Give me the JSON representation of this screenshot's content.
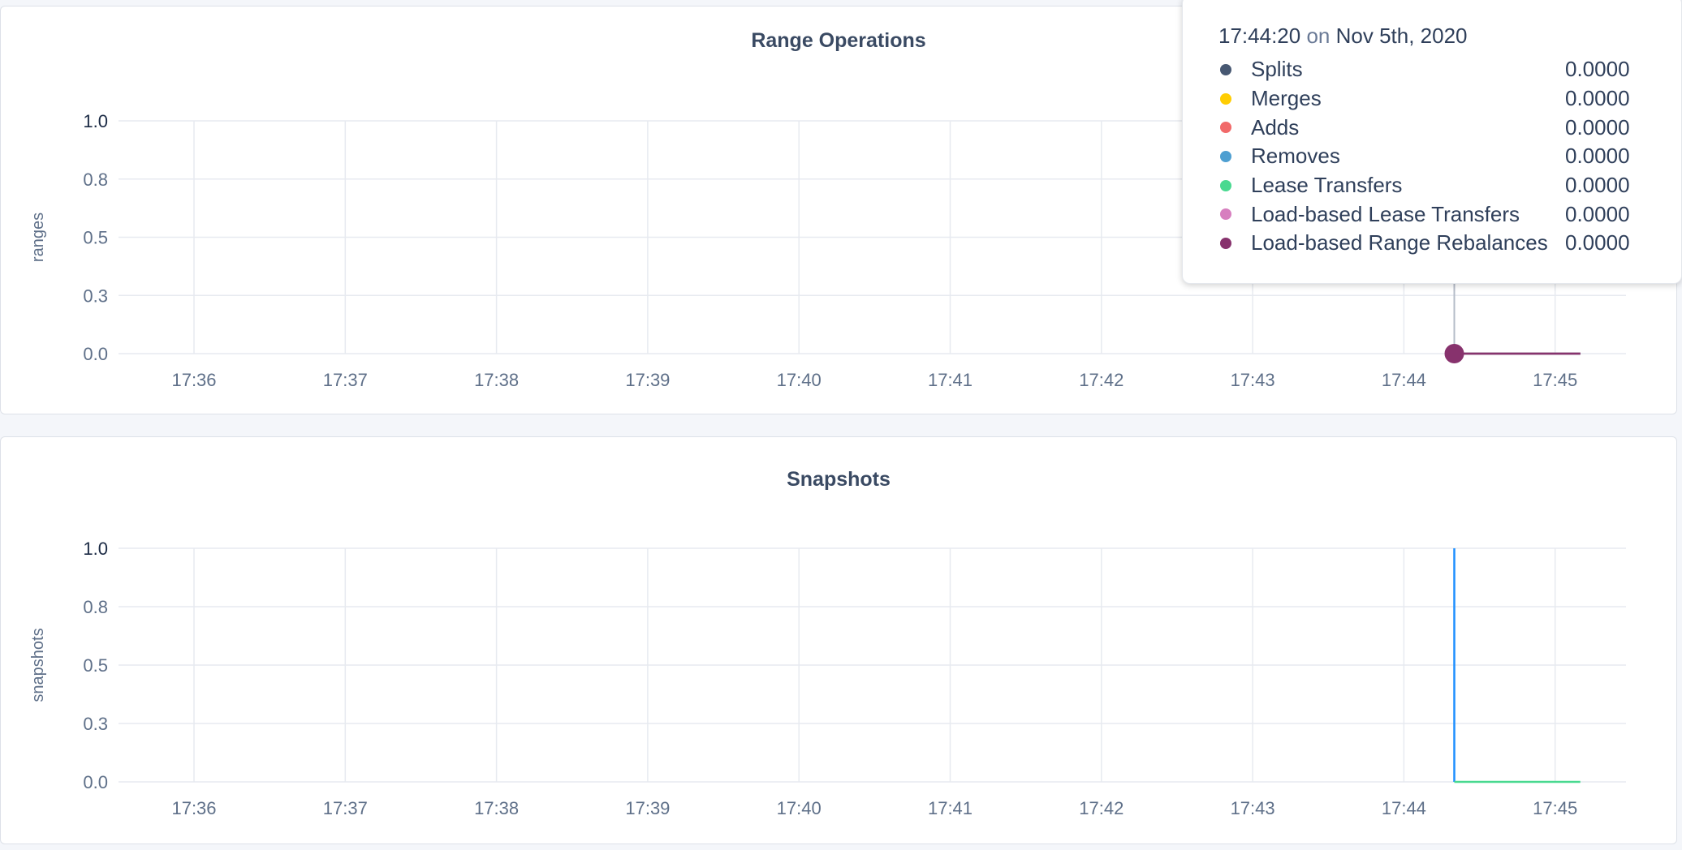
{
  "chart_data": [
    {
      "type": "line",
      "title": "Range Operations",
      "ylabel": "ranges",
      "ylim": [
        0,
        1
      ],
      "yticks": [
        0,
        0.25,
        0.5,
        0.75,
        1
      ],
      "ytick_labels": [
        "0.0",
        "0.3",
        "0.5",
        "0.8",
        "1.0"
      ],
      "xtick_labels": [
        "17:36",
        "17:37",
        "17:38",
        "17:39",
        "17:40",
        "17:41",
        "17:42",
        "17:43",
        "17:44",
        "17:45"
      ],
      "grid": true,
      "series": [
        {
          "name": "Splits",
          "color": "#475872",
          "points": [
            [
              "17:44:20",
              0
            ],
            [
              "17:45:10",
              0
            ]
          ]
        },
        {
          "name": "Merges",
          "color": "#ffcd02",
          "points": [
            [
              "17:44:20",
              0
            ],
            [
              "17:45:10",
              0
            ]
          ]
        },
        {
          "name": "Adds",
          "color": "#f16969",
          "points": [
            [
              "17:44:20",
              0
            ],
            [
              "17:45:10",
              0
            ]
          ]
        },
        {
          "name": "Removes",
          "color": "#4e9fd1",
          "points": [
            [
              "17:44:20",
              0
            ],
            [
              "17:45:10",
              0
            ]
          ]
        },
        {
          "name": "Lease Transfers",
          "color": "#49d990",
          "points": [
            [
              "17:44:20",
              0
            ],
            [
              "17:45:10",
              0
            ]
          ]
        },
        {
          "name": "Load-based Lease Transfers",
          "color": "#d77fbf",
          "points": [
            [
              "17:44:20",
              0
            ],
            [
              "17:45:10",
              0
            ]
          ]
        },
        {
          "name": "Load-based Range Rebalances",
          "color": "#87326d",
          "points": [
            [
              "17:44:20",
              0
            ],
            [
              "17:45:10",
              0
            ]
          ]
        }
      ],
      "hover": {
        "time": "17:44:20",
        "on": "on",
        "date": "Nov 5th, 2020",
        "values": [
          "0.0000",
          "0.0000",
          "0.0000",
          "0.0000",
          "0.0000",
          "0.0000",
          "0.0000"
        ]
      }
    },
    {
      "type": "line",
      "title": "Snapshots",
      "ylabel": "snapshots",
      "ylim": [
        0,
        1
      ],
      "yticks": [
        0,
        0.25,
        0.5,
        0.75,
        1
      ],
      "ytick_labels": [
        "0.0",
        "0.3",
        "0.5",
        "0.8",
        "1.0"
      ],
      "xtick_labels": [
        "17:36",
        "17:37",
        "17:38",
        "17:39",
        "17:40",
        "17:41",
        "17:42",
        "17:43",
        "17:44",
        "17:45"
      ],
      "grid": true,
      "series": [
        {
          "color": "#1f8fff",
          "points": [
            [
              "17:44:20",
              1
            ],
            [
              "17:44:20",
              0
            ]
          ]
        },
        {
          "color": "#49d990",
          "points": [
            [
              "17:44:20",
              0
            ],
            [
              "17:45:10",
              0
            ]
          ]
        }
      ]
    }
  ]
}
